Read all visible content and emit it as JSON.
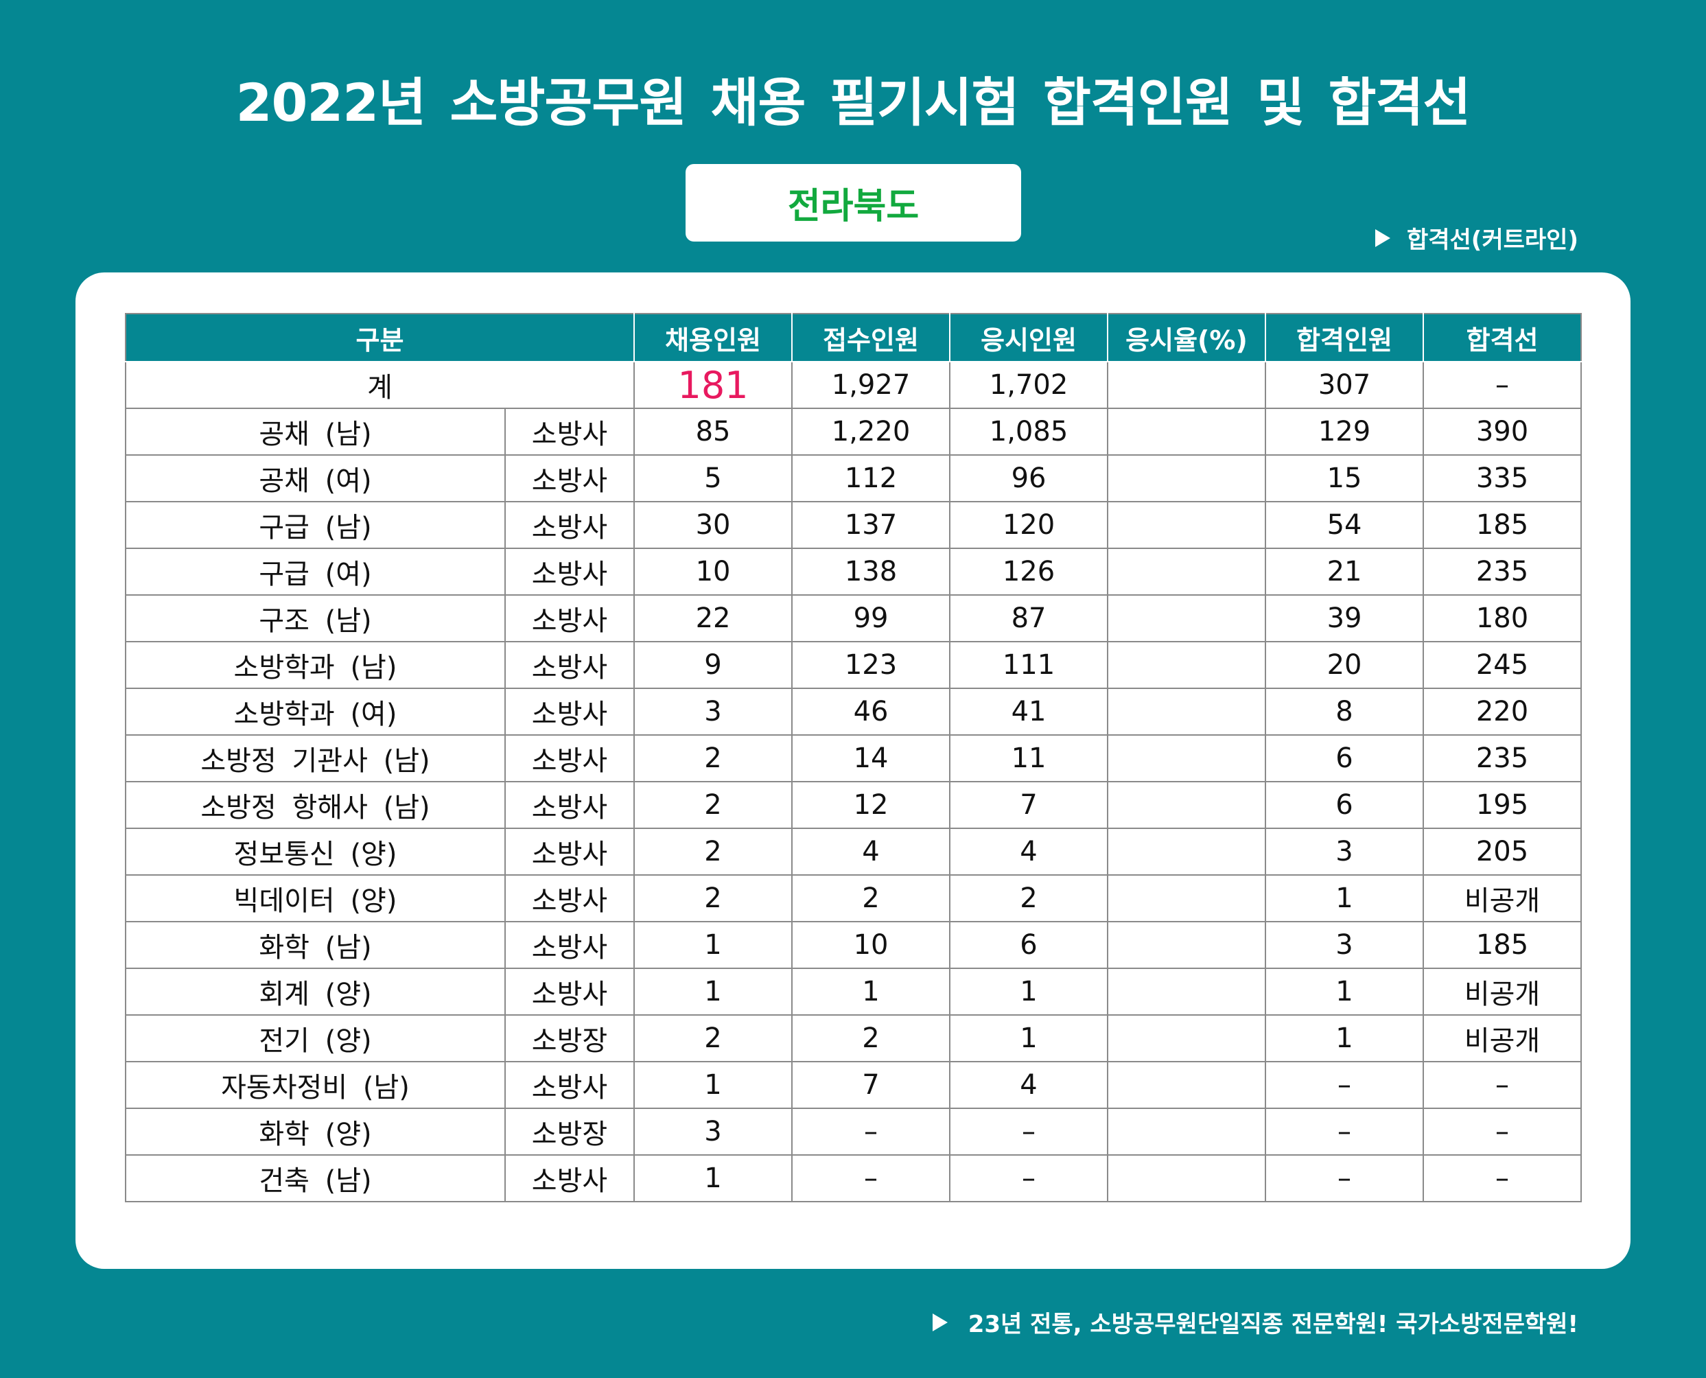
{
  "title": "2022년 소방공무원 채용 필기시험 합격인원 및 합격선",
  "region": "전라북도",
  "cutline_note": "합격선(커트라인)",
  "table": {
    "headers": [
      "구분",
      "채용인원",
      "접수인원",
      "응시인원",
      "응시율(%)",
      "합격인원",
      "합격선"
    ],
    "total": {
      "label": "계",
      "hire": "181",
      "applied": "1,927",
      "took": "1,702",
      "rate": "",
      "passed": "307",
      "cutline": "–"
    },
    "rows": [
      {
        "category": "공채 (남)",
        "rank": "소방사",
        "hire": "85",
        "applied": "1,220",
        "took": "1,085",
        "rate": "",
        "passed": "129",
        "cutline": "390"
      },
      {
        "category": "공채 (여)",
        "rank": "소방사",
        "hire": "5",
        "applied": "112",
        "took": "96",
        "rate": "",
        "passed": "15",
        "cutline": "335"
      },
      {
        "category": "구급 (남)",
        "rank": "소방사",
        "hire": "30",
        "applied": "137",
        "took": "120",
        "rate": "",
        "passed": "54",
        "cutline": "185"
      },
      {
        "category": "구급 (여)",
        "rank": "소방사",
        "hire": "10",
        "applied": "138",
        "took": "126",
        "rate": "",
        "passed": "21",
        "cutline": "235"
      },
      {
        "category": "구조 (남)",
        "rank": "소방사",
        "hire": "22",
        "applied": "99",
        "took": "87",
        "rate": "",
        "passed": "39",
        "cutline": "180"
      },
      {
        "category": "소방학과 (남)",
        "rank": "소방사",
        "hire": "9",
        "applied": "123",
        "took": "111",
        "rate": "",
        "passed": "20",
        "cutline": "245"
      },
      {
        "category": "소방학과 (여)",
        "rank": "소방사",
        "hire": "3",
        "applied": "46",
        "took": "41",
        "rate": "",
        "passed": "8",
        "cutline": "220"
      },
      {
        "category": "소방정 기관사 (남)",
        "rank": "소방사",
        "hire": "2",
        "applied": "14",
        "took": "11",
        "rate": "",
        "passed": "6",
        "cutline": "235"
      },
      {
        "category": "소방정 항해사 (남)",
        "rank": "소방사",
        "hire": "2",
        "applied": "12",
        "took": "7",
        "rate": "",
        "passed": "6",
        "cutline": "195"
      },
      {
        "category": "정보통신 (양)",
        "rank": "소방사",
        "hire": "2",
        "applied": "4",
        "took": "4",
        "rate": "",
        "passed": "3",
        "cutline": "205"
      },
      {
        "category": "빅데이터 (양)",
        "rank": "소방사",
        "hire": "2",
        "applied": "2",
        "took": "2",
        "rate": "",
        "passed": "1",
        "cutline": "비공개"
      },
      {
        "category": "화학 (남)",
        "rank": "소방사",
        "hire": "1",
        "applied": "10",
        "took": "6",
        "rate": "",
        "passed": "3",
        "cutline": "185"
      },
      {
        "category": "회계 (양)",
        "rank": "소방사",
        "hire": "1",
        "applied": "1",
        "took": "1",
        "rate": "",
        "passed": "1",
        "cutline": "비공개"
      },
      {
        "category": "전기 (양)",
        "rank": "소방장",
        "hire": "2",
        "applied": "2",
        "took": "1",
        "rate": "",
        "passed": "1",
        "cutline": "비공개"
      },
      {
        "category": "자동차정비 (남)",
        "rank": "소방사",
        "hire": "1",
        "applied": "7",
        "took": "4",
        "rate": "",
        "passed": "–",
        "cutline": "–"
      },
      {
        "category": "화학 (양)",
        "rank": "소방장",
        "hire": "3",
        "applied": "–",
        "took": "–",
        "rate": "",
        "passed": "–",
        "cutline": "–"
      },
      {
        "category": "건축 (남)",
        "rank": "소방사",
        "hire": "1",
        "applied": "–",
        "took": "–",
        "rate": "",
        "passed": "–",
        "cutline": "–"
      }
    ]
  },
  "footer": "23년 전통, 소방공무원단일직종 전문학원! 국가소방전문학원!"
}
